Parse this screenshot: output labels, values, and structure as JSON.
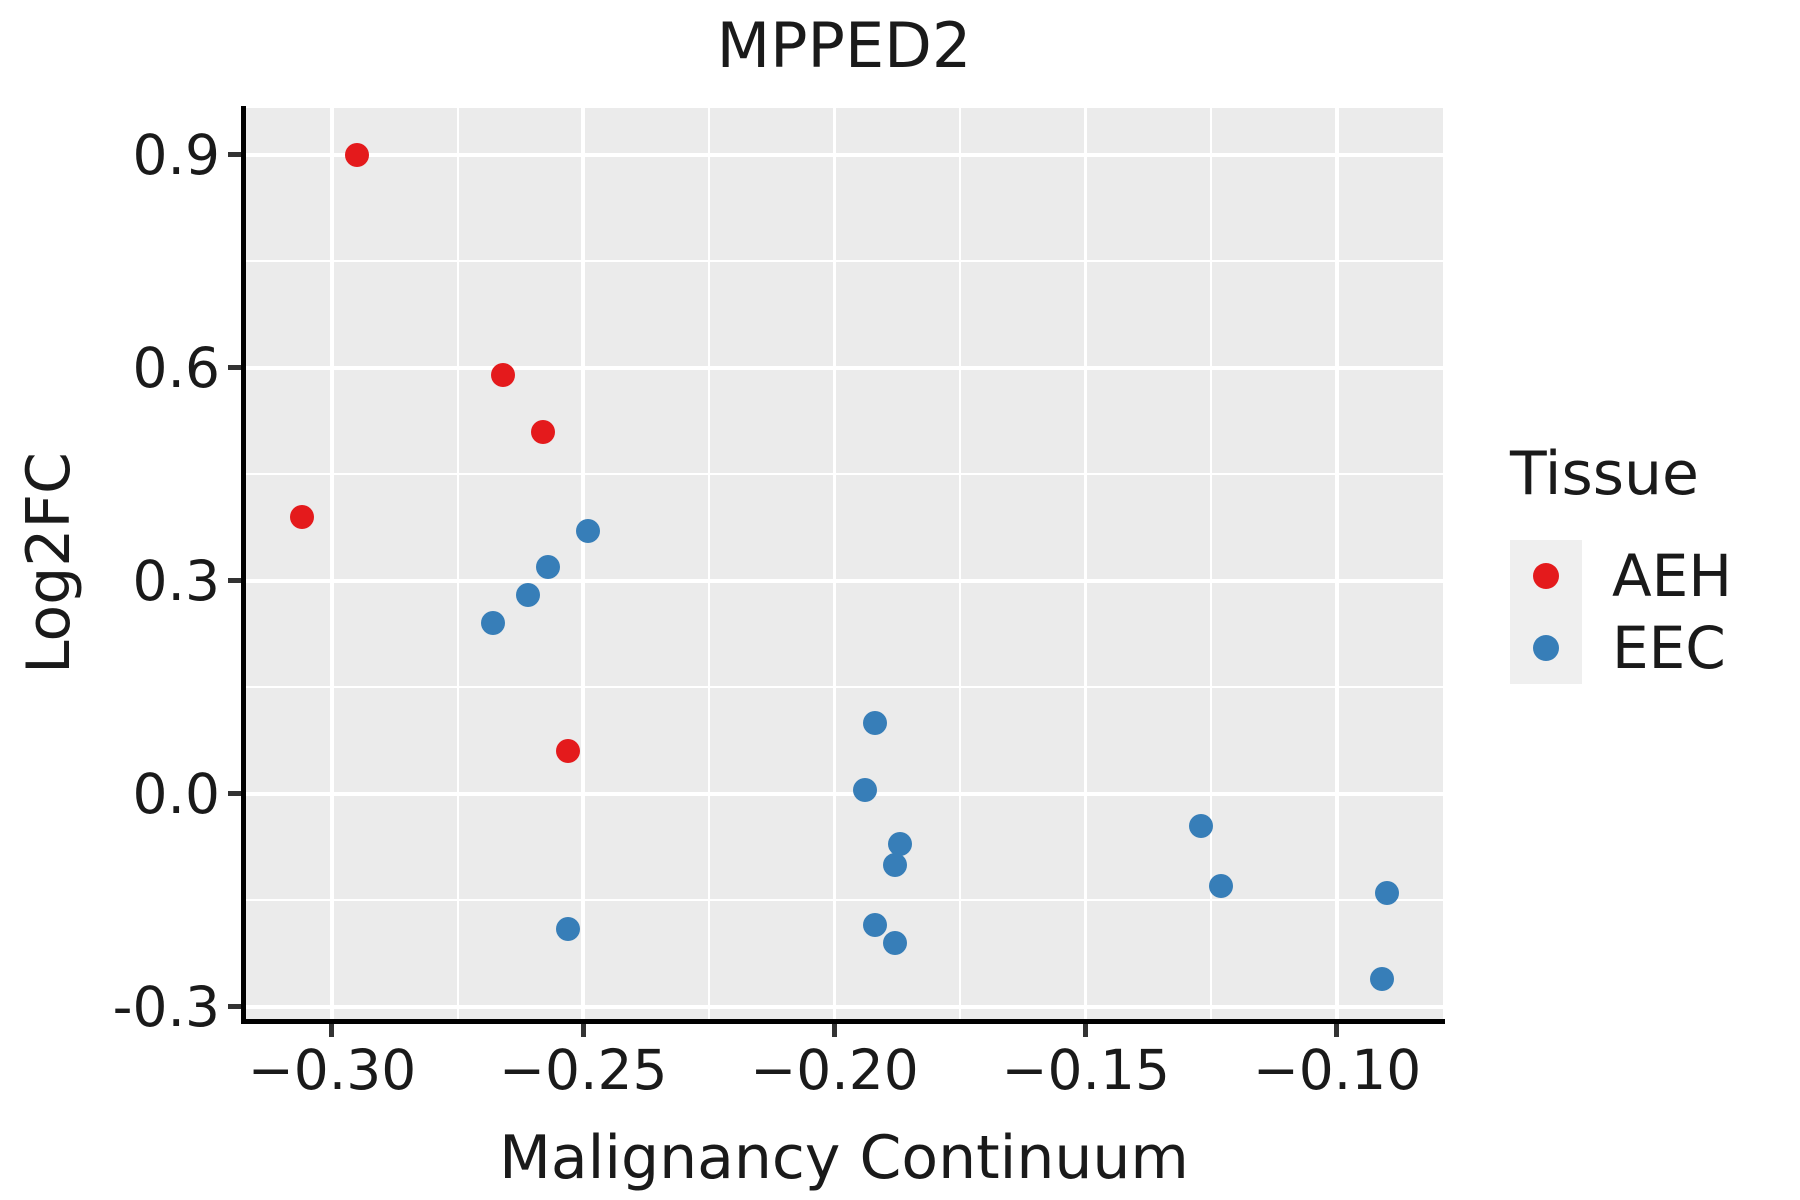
{
  "title": "MPPED2",
  "axes": {
    "x": {
      "label": "Malignancy Continuum",
      "ticks": [
        "−0.30",
        "−0.25",
        "−0.20",
        "−0.15",
        "−0.10"
      ],
      "tick_values": [
        -0.3,
        -0.25,
        -0.2,
        -0.15,
        -0.1
      ],
      "minor_tick_values": [
        -0.275,
        -0.225,
        -0.175,
        -0.125
      ]
    },
    "y": {
      "label": "Log2FC",
      "ticks": [
        "0.9",
        "0.6",
        "0.3",
        "0.0",
        "-0.3"
      ],
      "tick_values": [
        0.9,
        0.6,
        0.3,
        0.0,
        -0.3
      ],
      "minor_tick_values": [
        0.75,
        0.45,
        0.15,
        -0.15
      ]
    }
  },
  "legend": {
    "title": "Tissue",
    "items": [
      {
        "label": "AEH",
        "color": "#E41A1C"
      },
      {
        "label": "EEC",
        "color": "#377EB8"
      }
    ]
  },
  "colors": {
    "panel_background": "#EBEBEB",
    "gridline": "#FFFFFF",
    "axis_line": "#000000",
    "tick_mark": "#333333",
    "text": "#1A1A1A",
    "legend_key_background": "#EFEFEF",
    "aeh_red": "#E41A1C",
    "eec_blue": "#377EB8"
  },
  "chart_data": {
    "type": "scatter",
    "title": "MPPED2",
    "xlabel": "Malignancy Continuum",
    "ylabel": "Log2FC",
    "xlim": [
      -0.3173,
      -0.0789
    ],
    "ylim": [
      -0.317,
      0.966
    ],
    "grid": true,
    "legend_position": "right",
    "series": [
      {
        "name": "AEH",
        "color": "#E41A1C",
        "points": [
          [
            -0.295,
            0.9
          ],
          [
            -0.266,
            0.59
          ],
          [
            -0.258,
            0.51
          ],
          [
            -0.306,
            0.39
          ],
          [
            -0.253,
            0.06
          ]
        ]
      },
      {
        "name": "EEC",
        "color": "#377EB8",
        "points": [
          [
            -0.249,
            0.37
          ],
          [
            -0.257,
            0.32
          ],
          [
            -0.261,
            0.28
          ],
          [
            -0.268,
            0.24
          ],
          [
            -0.253,
            -0.19
          ],
          [
            -0.192,
            0.1
          ],
          [
            -0.194,
            0.005
          ],
          [
            -0.187,
            -0.07
          ],
          [
            -0.188,
            -0.1
          ],
          [
            -0.192,
            -0.185
          ],
          [
            -0.188,
            -0.21
          ],
          [
            -0.127,
            -0.045
          ],
          [
            -0.123,
            -0.13
          ],
          [
            -0.09,
            -0.14
          ],
          [
            -0.091,
            -0.26
          ]
        ]
      }
    ]
  }
}
